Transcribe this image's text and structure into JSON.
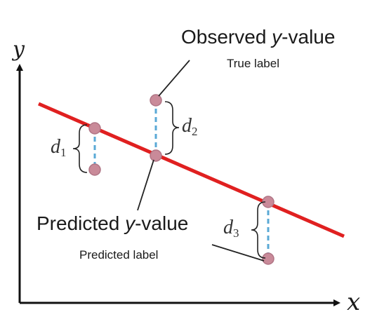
{
  "axes": {
    "x_label": "x",
    "y_label": "y"
  },
  "annotations": {
    "observed_prefix": "Observed ",
    "observed_var": "y",
    "observed_suffix": "-value",
    "true_label": "True label",
    "predicted_prefix": "Predicted ",
    "predicted_var": "y",
    "predicted_suffix": "-value",
    "predicted_label": "Predicted label"
  },
  "distances": [
    {
      "letter": "d",
      "sub": "1"
    },
    {
      "letter": "d",
      "sub": "2"
    },
    {
      "letter": "d",
      "sub": "3"
    }
  ],
  "colors": {
    "regression_line": "#e02020",
    "point_fill": "#c98a99",
    "point_stroke": "#b07585",
    "dashed_residual": "#5aa9d6",
    "axis": "#111111",
    "text": "#1a1a1a"
  }
}
